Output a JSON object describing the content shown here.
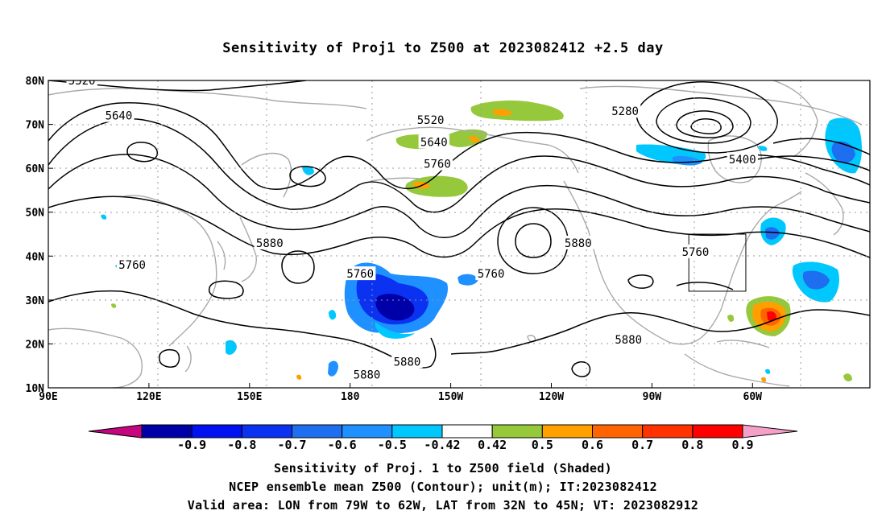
{
  "title": "Sensitivity of Proj1 to Z500 at 2023082412 +2.5 day",
  "map": {
    "lon_labels": [
      "90E",
      "120E",
      "150E",
      "180",
      "150W",
      "120W",
      "90W",
      "60W"
    ],
    "lat_labels": [
      "80N",
      "70N",
      "60N",
      "50N",
      "40N",
      "30N",
      "20N",
      "10N"
    ],
    "contour_labels": [
      {
        "text": "5520",
        "lon": 100,
        "lat": 80
      },
      {
        "text": "5640",
        "lon": 111,
        "lat": 72
      },
      {
        "text": "5760",
        "lon": 115,
        "lat": 38
      },
      {
        "text": "5880",
        "lon": 156,
        "lat": 43
      },
      {
        "text": "5760",
        "lon": 183,
        "lat": 36
      },
      {
        "text": "5880",
        "lon": 185,
        "lat": 13
      },
      {
        "text": "5520",
        "lon": 204,
        "lat": 71
      },
      {
        "text": "5640",
        "lon": 205,
        "lat": 66
      },
      {
        "text": "5760",
        "lon": 206,
        "lat": 61
      },
      {
        "text": "5880",
        "lon": 197,
        "lat": 16
      },
      {
        "text": "5760",
        "lon": 222,
        "lat": 36
      },
      {
        "text": "5880",
        "lon": 248,
        "lat": 43
      },
      {
        "text": "5280",
        "lon": 262,
        "lat": 73
      },
      {
        "text": "5880",
        "lon": 263,
        "lat": 21
      },
      {
        "text": "5400",
        "lon": 297,
        "lat": 62
      },
      {
        "text": "5760",
        "lon": 283,
        "lat": 41
      }
    ],
    "valid_box": {
      "lon_min": 281,
      "lon_max": 298,
      "lat_min": 32,
      "lat_max": 45
    }
  },
  "colorbar": {
    "labels": [
      "-0.9",
      "-0.8",
      "-0.7",
      "-0.6",
      "-0.5",
      "-0.42",
      "0.42",
      "0.5",
      "0.6",
      "0.7",
      "0.8",
      "0.9"
    ],
    "colors": [
      "#c5067f",
      "#0000a8",
      "#0012f0",
      "#0a32f0",
      "#1e6ef0",
      "#1e90ff",
      "#00c8ff",
      "#ffffff",
      "#96c83c",
      "#ffa000",
      "#ff6400",
      "#ff3200",
      "#ff0000",
      "#f5a0c8"
    ]
  },
  "captions": {
    "line1": "Sensitivity of Proj. 1 to Z500 field (Shaded)",
    "line2": "NCEP ensemble mean Z500 (Contour); unit(m); IT:2023082412",
    "line3": "Valid area: LON from 79W to 62W, LAT from 32N to 45N; VT: 2023082912"
  }
}
